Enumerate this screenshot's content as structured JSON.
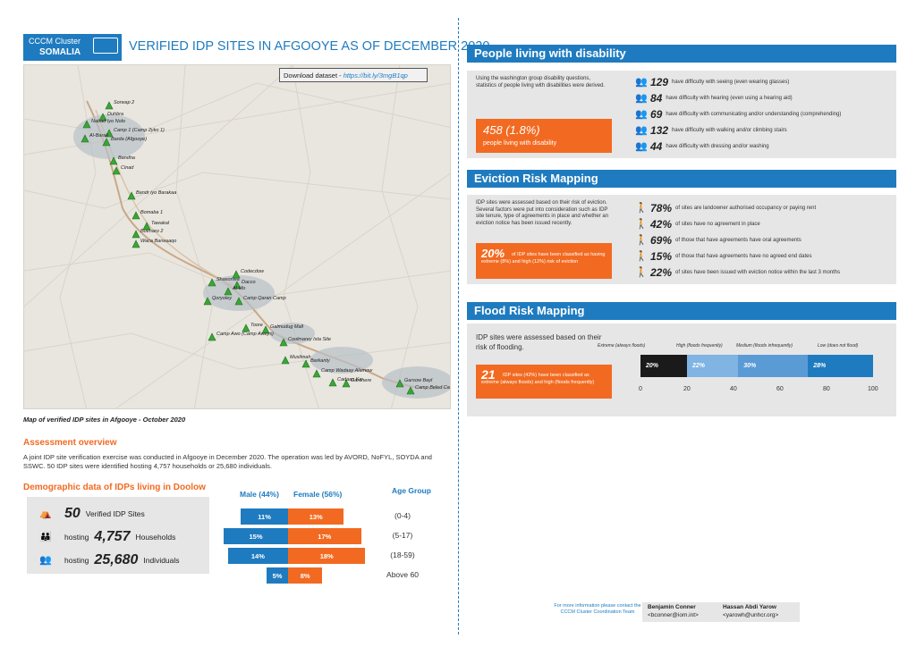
{
  "header": {
    "logo_line1": "CCCM Cluster",
    "logo_line2": "SOMALIA",
    "title": "VERIFIED IDP SITES IN AFGOOYE AS OF DECEMBER 2020"
  },
  "map": {
    "download_label": "Download dataset - ",
    "download_url": "https://bit.ly/3mgB1qp",
    "caption": "Map of verified IDP sites in Afgooye - October 2020",
    "sites": [
      {
        "name": "Sorwap 2"
      },
      {
        "name": "Nabad Iyo Nolo"
      },
      {
        "name": "Duhbra"
      },
      {
        "name": "Al-Barak"
      },
      {
        "name": "Camp 1 (Camp 2yko 1)"
      },
      {
        "name": "Barda (Afgooye)"
      },
      {
        "name": "Bandha"
      },
      {
        "name": "Cinad"
      },
      {
        "name": "Bandr iyo Barakaa"
      },
      {
        "name": "Bomaba 1"
      },
      {
        "name": "Tawakal"
      },
      {
        "name": "Botmaro 2"
      },
      {
        "name": "Waca Barwaaqo"
      },
      {
        "name": "Shaxonwa"
      },
      {
        "name": "Codecdow"
      },
      {
        "name": "Al-Mo"
      },
      {
        "name": "Dacco"
      },
      {
        "name": "Qoryoley"
      },
      {
        "name": "Camp Qaran Camp"
      },
      {
        "name": "Toore"
      },
      {
        "name": "Camp Awo (Camp Aweys)"
      },
      {
        "name": "Galmudug Mall"
      },
      {
        "name": "Coolmarey Ista Site"
      },
      {
        "name": "Muslimah"
      },
      {
        "name": "Barkanty"
      },
      {
        "name": "Camp Wadaay Alamow"
      },
      {
        "name": "Cadaan Ka"
      },
      {
        "name": "Gardhere"
      },
      {
        "name": "Garsow Bayl"
      },
      {
        "name": "Camp Beled Camp"
      }
    ]
  },
  "overview": {
    "heading": "Assessment overview",
    "text": "A joint IDP site verification exercise was conducted in Afgooye in December 2020. The operation was led by AVORD, NoFYL, SOYDA and SSWC. 50 IDP sites were identified hosting 4,757 households or 25,680 individuals."
  },
  "demographic": {
    "heading": "Demographic data of IDPs living in Doolow",
    "sites_num": "50",
    "sites_label": "Verified IDP Sites",
    "hh_pre": "hosting",
    "hh_num": "4,757",
    "hh_label": "Households",
    "ind_pre": "hosting",
    "ind_num": "25,680",
    "ind_label": "Individuals",
    "male_header": "Male (44%)",
    "female_header": "Female (56%)",
    "age_header": "Age Group"
  },
  "chart_data": [
    {
      "type": "bar",
      "title": "",
      "categories": [
        "(0-4)",
        "(5-17)",
        "(18-59)",
        "Above 60"
      ],
      "series": [
        {
          "name": "Male (44%)",
          "values": [
            11,
            15,
            14,
            5
          ]
        },
        {
          "name": "Female (56%)",
          "values": [
            13,
            17,
            18,
            8
          ]
        }
      ],
      "unit": "%"
    },
    {
      "type": "bar",
      "title": "",
      "categories": [
        "Extreme (always floods)",
        "High (floods frequently)",
        "Medium (floods infrequently)",
        "Low (does not flood)"
      ],
      "values": [
        20,
        22,
        30,
        28
      ],
      "stacked": true,
      "xlim": [
        0,
        100
      ],
      "xticks": [
        "0",
        "20",
        "40",
        "60",
        "80",
        "100"
      ]
    }
  ],
  "pyramid_labels": {
    "male": [
      "11%",
      "15%",
      "14%",
      "5%"
    ],
    "female": [
      "13%",
      "17%",
      "18%",
      "8%"
    ]
  },
  "disability": {
    "heading": "People living with disability",
    "intro": "Using the washington group disability questions, statistics of people living with disabilities were derived.",
    "total": "458 (1.8%)",
    "total_label": "people living with disability",
    "items": [
      {
        "n": "129",
        "t": "have difficulty with seeing (even wearing glasses)"
      },
      {
        "n": "84",
        "t": "have difficulty with hearing (even using a hearing aid)"
      },
      {
        "n": "69",
        "t": "have difficulty with communicating and/or understanding (comprehending)"
      },
      {
        "n": "132",
        "t": "have difficulty with walking and/or climbing stairs"
      },
      {
        "n": "44",
        "t": "have difficulty with dressing and/or washing"
      }
    ]
  },
  "eviction": {
    "heading": "Eviction Risk Mapping",
    "intro": "IDP sites were assessed based on their risk of eviction. Several factors were put into consideration such as IDP site tenure, type of agreements in place and whether an eviction notice has been issued recently.",
    "big": "20%",
    "big_text": "of IDP sites have been classified as having extreme (8%) and high (12%) risk of eviction",
    "items": [
      {
        "n": "78%",
        "t": "of sites are landowner authorised occupancy or paying rent"
      },
      {
        "n": "42%",
        "t": "of sites have no agreement in place"
      },
      {
        "n": "69%",
        "t": "of those that have agreements have oral agreements"
      },
      {
        "n": "15%",
        "t": "of those that have agreements have no agreed end dates"
      },
      {
        "n": "22%",
        "t": "of sites have been issued with eviction notice within the last 3 months"
      }
    ]
  },
  "flood": {
    "heading": "Flood Risk Mapping",
    "intro": "IDP sites were assessed based on their risk of flooding.",
    "big": "21",
    "big_text": "IDP sites (42%) have been classified as extreme (always floods) and high (floods frequently)",
    "bar_labels": [
      "20%",
      "22%",
      "30%",
      "28%"
    ],
    "colors": [
      "#1a1a1a",
      "#7fb4e3",
      "#5b9bd5",
      "#1f7bbf"
    ]
  },
  "footer": {
    "info": "For more information please contact the CCCM Cluster Coordination Team",
    "c1_name": "Benjamin Conner",
    "c1_email": "<bconner@iom.int>",
    "c2_name": "Hassan Abdi Yarow",
    "c2_email": "<yarowh@unhcr.org>"
  },
  "colors": {
    "blue": "#1f7bbf",
    "orange": "#f26a21",
    "grey": "#e6e6e6"
  }
}
